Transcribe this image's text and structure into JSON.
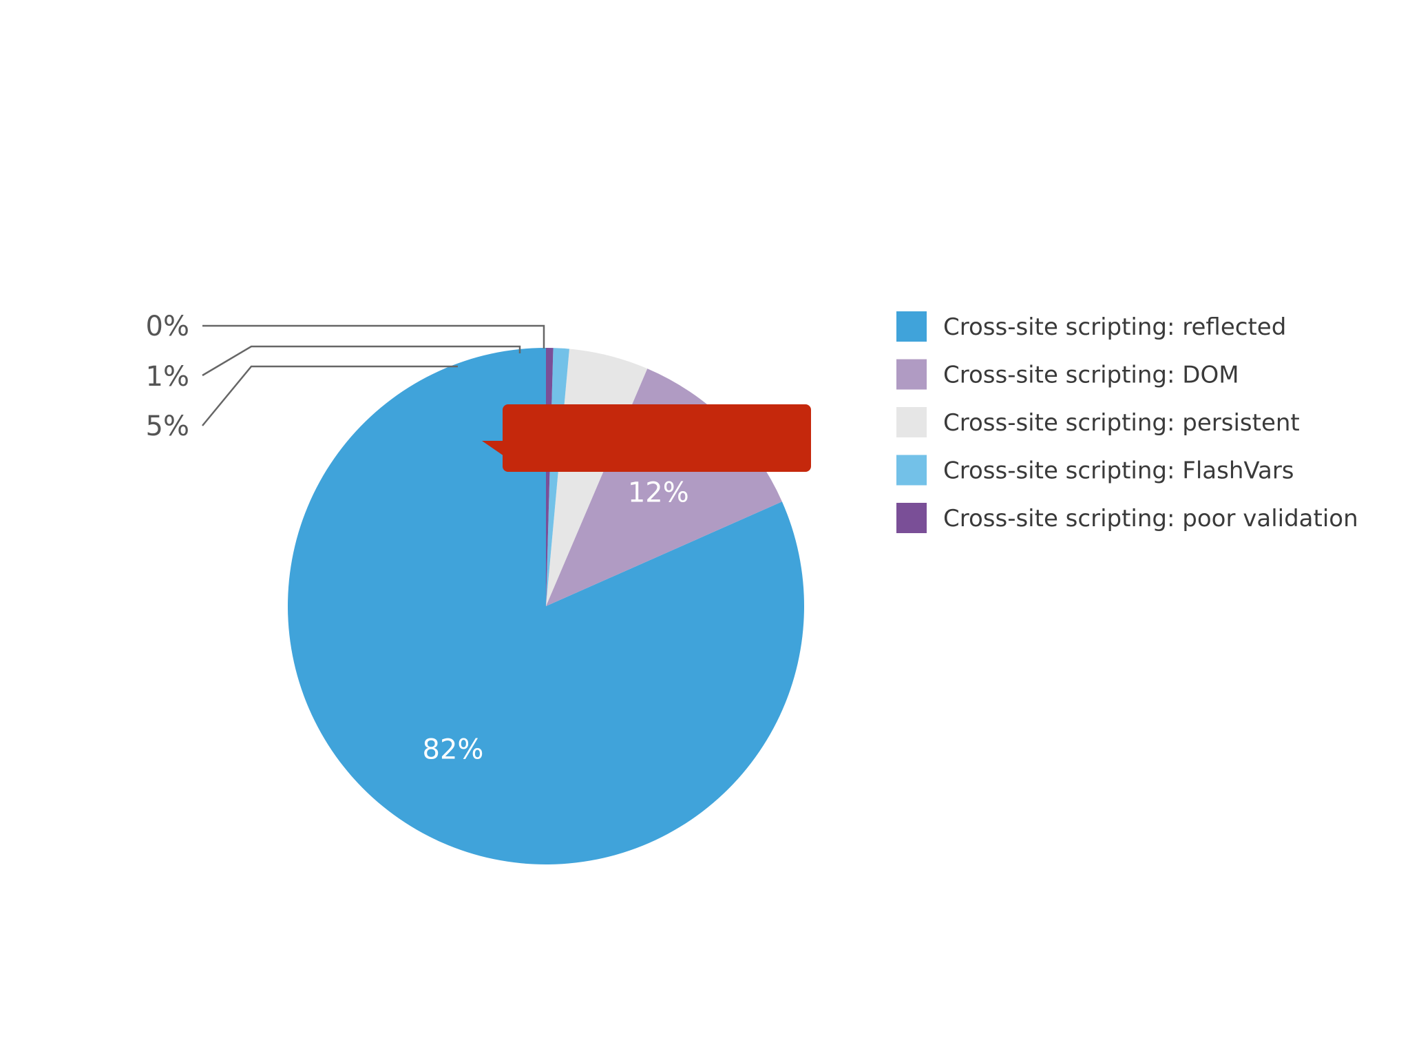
{
  "chart_data": {
    "type": "pie",
    "start": "top",
    "direction": "counterclockwise",
    "slices": [
      {
        "name": "Cross-site scripting: reflected",
        "value": 82,
        "label": "82%",
        "color": "#40a3da"
      },
      {
        "name": "Cross-site scripting: DOM",
        "value": 12,
        "label": "12%",
        "color": "#b09bc3"
      },
      {
        "name": "Cross-site scripting: persistent",
        "value": 5,
        "label": "5%",
        "color": "#e6e6e6"
      },
      {
        "name": "Cross-site scripting: FlashVars",
        "value": 1,
        "label": "1%",
        "color": "#73c1e8"
      },
      {
        "name": "Cross-site scripting: poor validation",
        "value": 0,
        "label": "0%",
        "color": "#7a4f97"
      }
    ],
    "legend": "right"
  },
  "callout": {
    "color": "#c5280c",
    "text": ""
  }
}
